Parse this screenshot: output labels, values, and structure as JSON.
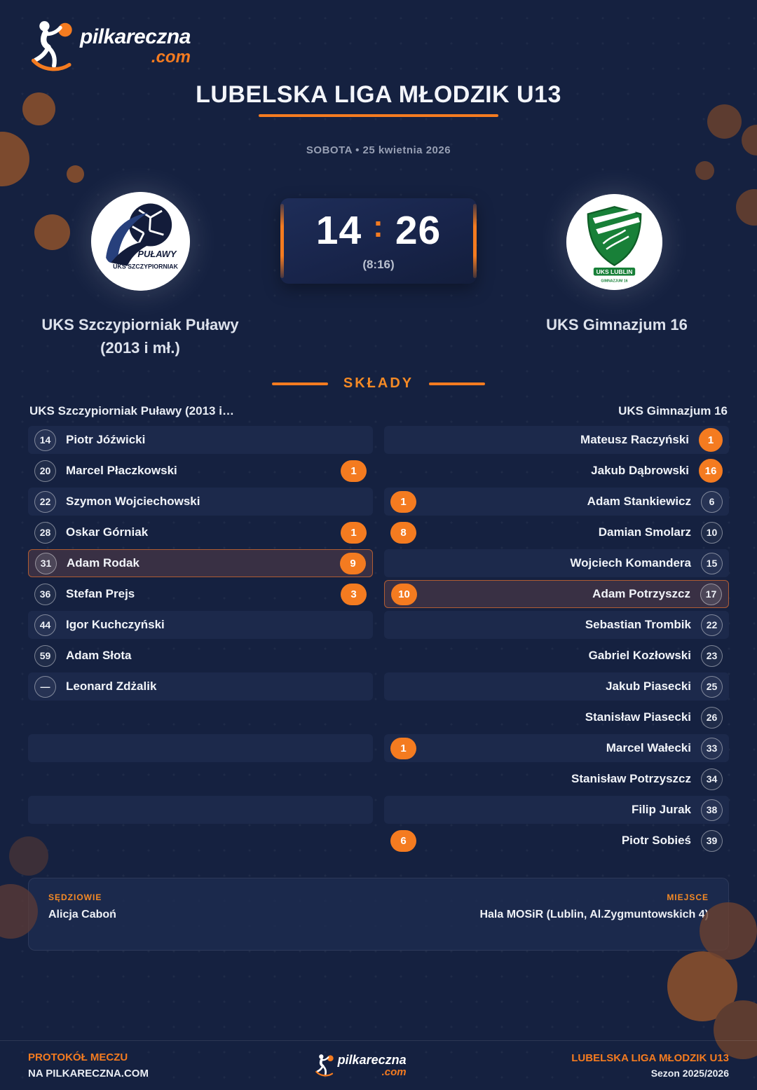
{
  "brand": {
    "name": "pilkareczna",
    "tld": ".com"
  },
  "header": {
    "title": "LUBELSKA LIGA MŁODZIK U13",
    "date": "SOBOTA • 25 kwietnia 2026"
  },
  "match": {
    "home": {
      "name_line1": "UKS Szczypiorniak Puławy",
      "name_line2": "(2013 i mł.)"
    },
    "away": {
      "name_line1": "UKS Gimnazjum 16",
      "name_line2": ""
    },
    "score": {
      "home": "14",
      "away": "26",
      "separator": ":",
      "halftime": "(8:16)"
    }
  },
  "rosters": {
    "section_title": "SKŁADY",
    "home_header": "UKS Szczypiorniak Puławy (2013 i…",
    "away_header": "UKS Gimnazjum 16",
    "home_players": [
      {
        "number": "14",
        "name": "Piotr Jóźwicki",
        "goals": ""
      },
      {
        "number": "20",
        "name": "Marcel Płaczkowski",
        "goals": "1"
      },
      {
        "number": "22",
        "name": "Szymon Wojciechowski",
        "goals": ""
      },
      {
        "number": "28",
        "name": "Oskar Górniak",
        "goals": "1"
      },
      {
        "number": "31",
        "name": "Adam Rodak",
        "goals": "9",
        "highlight": true
      },
      {
        "number": "36",
        "name": "Stefan Prejs",
        "goals": "3"
      },
      {
        "number": "44",
        "name": "Igor Kuchczyński",
        "goals": ""
      },
      {
        "number": "59",
        "name": "Adam Słota",
        "goals": ""
      },
      {
        "number": "—",
        "name": "Leonard Zdżalik",
        "goals": ""
      },
      {},
      {},
      {},
      {},
      {}
    ],
    "away_players": [
      {
        "number": "1",
        "name": "Mateusz Raczyński",
        "goals": "",
        "gk": true
      },
      {
        "number": "16",
        "name": "Jakub Dąbrowski",
        "goals": "",
        "gk": true
      },
      {
        "number": "6",
        "name": "Adam Stankiewicz",
        "goals": "1"
      },
      {
        "number": "10",
        "name": "Damian Smolarz",
        "goals": "8"
      },
      {
        "number": "15",
        "name": "Wojciech Komandera",
        "goals": ""
      },
      {
        "number": "17",
        "name": "Adam Potrzyszcz",
        "goals": "10",
        "highlight": true
      },
      {
        "number": "22",
        "name": "Sebastian Trombik",
        "goals": ""
      },
      {
        "number": "23",
        "name": "Gabriel Kozłowski",
        "goals": ""
      },
      {
        "number": "25",
        "name": "Jakub Piasecki",
        "goals": ""
      },
      {
        "number": "26",
        "name": "Stanisław Piasecki",
        "goals": ""
      },
      {
        "number": "33",
        "name": "Marcel Wałecki",
        "goals": "1"
      },
      {
        "number": "34",
        "name": "Stanisław Potrzyszcz",
        "goals": ""
      },
      {
        "number": "38",
        "name": "Filip Jurak",
        "goals": ""
      },
      {
        "number": "39",
        "name": "Piotr Sobieś",
        "goals": "6"
      }
    ]
  },
  "details": {
    "referees_label": "SĘDZIOWIE",
    "referees": "Alicja Caboń",
    "venue_label": "MIEJSCE",
    "venue": "Hala MOSiR (Lublin, Al.Zygmuntowskich 4)"
  },
  "footer": {
    "left_line1": "PROTOKÓŁ MECZU",
    "left_line2": "NA PILKARECZNA.COM",
    "right_line1": "LUBELSKA LIGA MŁODZIK U13",
    "right_line2": "Sezon 2025/2026"
  },
  "colors": {
    "accent": "#f47b20",
    "background": "#152140",
    "row_stripe": "#1c294b",
    "highlight_bg": "#393044",
    "highlight_border": "#b05c33",
    "home_logo_navy": "#131c3a",
    "away_logo_green": "#188038"
  }
}
